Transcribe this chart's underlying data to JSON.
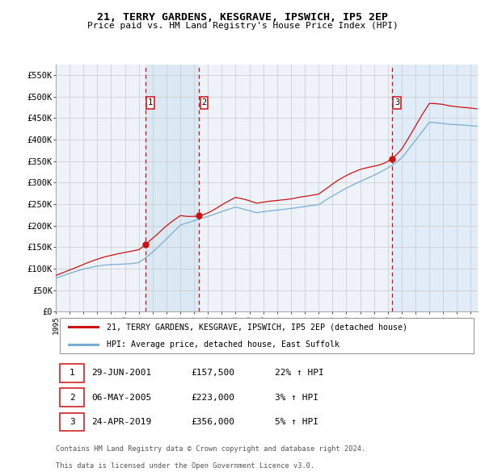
{
  "title": "21, TERRY GARDENS, KESGRAVE, IPSWICH, IP5 2EP",
  "subtitle": "Price paid vs. HM Land Registry's House Price Index (HPI)",
  "red_label": "21, TERRY GARDENS, KESGRAVE, IPSWICH, IP5 2EP (detached house)",
  "blue_label": "HPI: Average price, detached house, East Suffolk",
  "transactions": [
    {
      "num": 1,
      "date": "29-JUN-2001",
      "price": "£157,500",
      "hpi": "22% ↑ HPI",
      "x_year": 2001.49
    },
    {
      "num": 2,
      "date": "06-MAY-2005",
      "price": "£223,000",
      "hpi": "3% ↑ HPI",
      "x_year": 2005.35
    },
    {
      "num": 3,
      "date": "24-APR-2019",
      "price": "£356,000",
      "hpi": "5% ↑ HPI",
      "x_year": 2019.3
    }
  ],
  "ylabel_ticks": [
    "£0",
    "£50K",
    "£100K",
    "£150K",
    "£200K",
    "£250K",
    "£300K",
    "£350K",
    "£400K",
    "£450K",
    "£500K",
    "£550K"
  ],
  "ytick_values": [
    0,
    50000,
    100000,
    150000,
    200000,
    250000,
    300000,
    350000,
    400000,
    450000,
    500000,
    550000
  ],
  "xmin": 1995.0,
  "xmax": 2025.5,
  "ymin": 0,
  "ymax": 575000,
  "footnote1": "Contains HM Land Registry data © Crown copyright and database right 2024.",
  "footnote2": "This data is licensed under the Open Government Licence v3.0.",
  "shade_color": "#D8E8F5",
  "plot_bg": "#EEF3FA",
  "red_color": "#CC1111",
  "blue_color": "#7AADD4"
}
